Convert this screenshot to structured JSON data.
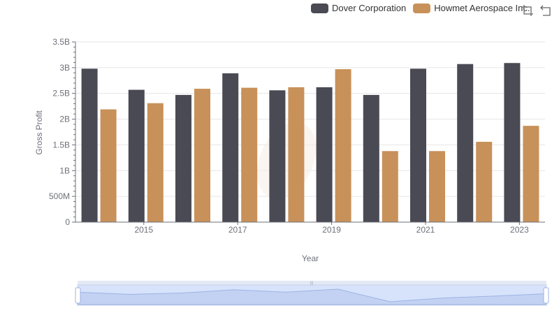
{
  "chart_data": {
    "type": "bar",
    "xlabel": "Year",
    "ylabel": "Gross Profit",
    "ylim": [
      0,
      3500000000
    ],
    "yticks": [
      {
        "value": 0,
        "label": "0"
      },
      {
        "value": 500000000,
        "label": "500M"
      },
      {
        "value": 1000000000,
        "label": "1B"
      },
      {
        "value": 1500000000,
        "label": "1.5B"
      },
      {
        "value": 2000000000,
        "label": "2B"
      },
      {
        "value": 2500000000,
        "label": "2.5B"
      },
      {
        "value": 3000000000,
        "label": "3B"
      },
      {
        "value": 3500000000,
        "label": "3.5B"
      }
    ],
    "categories": [
      "2014",
      "2015",
      "2016",
      "2017",
      "2018",
      "2019",
      "2020",
      "2021",
      "2022",
      "2023"
    ],
    "xtick_labels": [
      "2015",
      "2017",
      "2019",
      "2021",
      "2023"
    ],
    "grid": true,
    "legend_position": "top-right",
    "series": [
      {
        "name": "Dover Corporation",
        "color": "#4a4a55",
        "values": [
          2980000000,
          2570000000,
          2470000000,
          2890000000,
          2560000000,
          2620000000,
          2470000000,
          2980000000,
          3070000000,
          3090000000
        ]
      },
      {
        "name": "Howmet Aerospace Inc.",
        "color": "#c8915a",
        "values": [
          2190000000,
          2310000000,
          2590000000,
          2610000000,
          2620000000,
          2970000000,
          1380000000,
          1380000000,
          1560000000,
          1870000000
        ]
      }
    ]
  },
  "toolbar": {
    "icons": [
      "zoom-icon",
      "restore-icon"
    ]
  }
}
